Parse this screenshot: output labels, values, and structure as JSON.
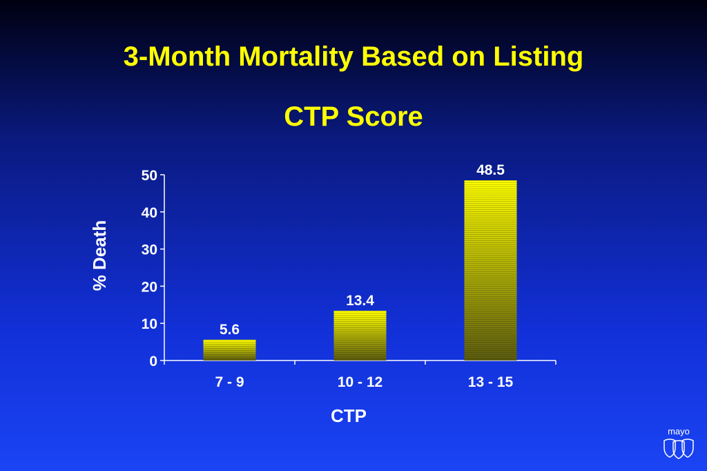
{
  "slide": {
    "title_line1": "3-Month Mortality Based on Listing",
    "title_line2": "CTP Score",
    "logo_text": "mayo"
  },
  "colors": {
    "title": "#ffff00",
    "axis_text": "#ffffff",
    "bar_top": "#ffff00",
    "bar_bottom": "#5c5c10"
  },
  "chart_data": {
    "type": "bar",
    "categories": [
      "7 - 9",
      "10 - 12",
      "13 - 15"
    ],
    "values": [
      5.6,
      13.4,
      48.5
    ],
    "data_labels": [
      "5.6",
      "13.4",
      "48.5"
    ],
    "xlabel": "CTP",
    "ylabel": "% Death",
    "ylim": [
      0,
      50
    ],
    "yticks": [
      0,
      10,
      20,
      30,
      40,
      50
    ],
    "grid": false,
    "legend": "none"
  }
}
